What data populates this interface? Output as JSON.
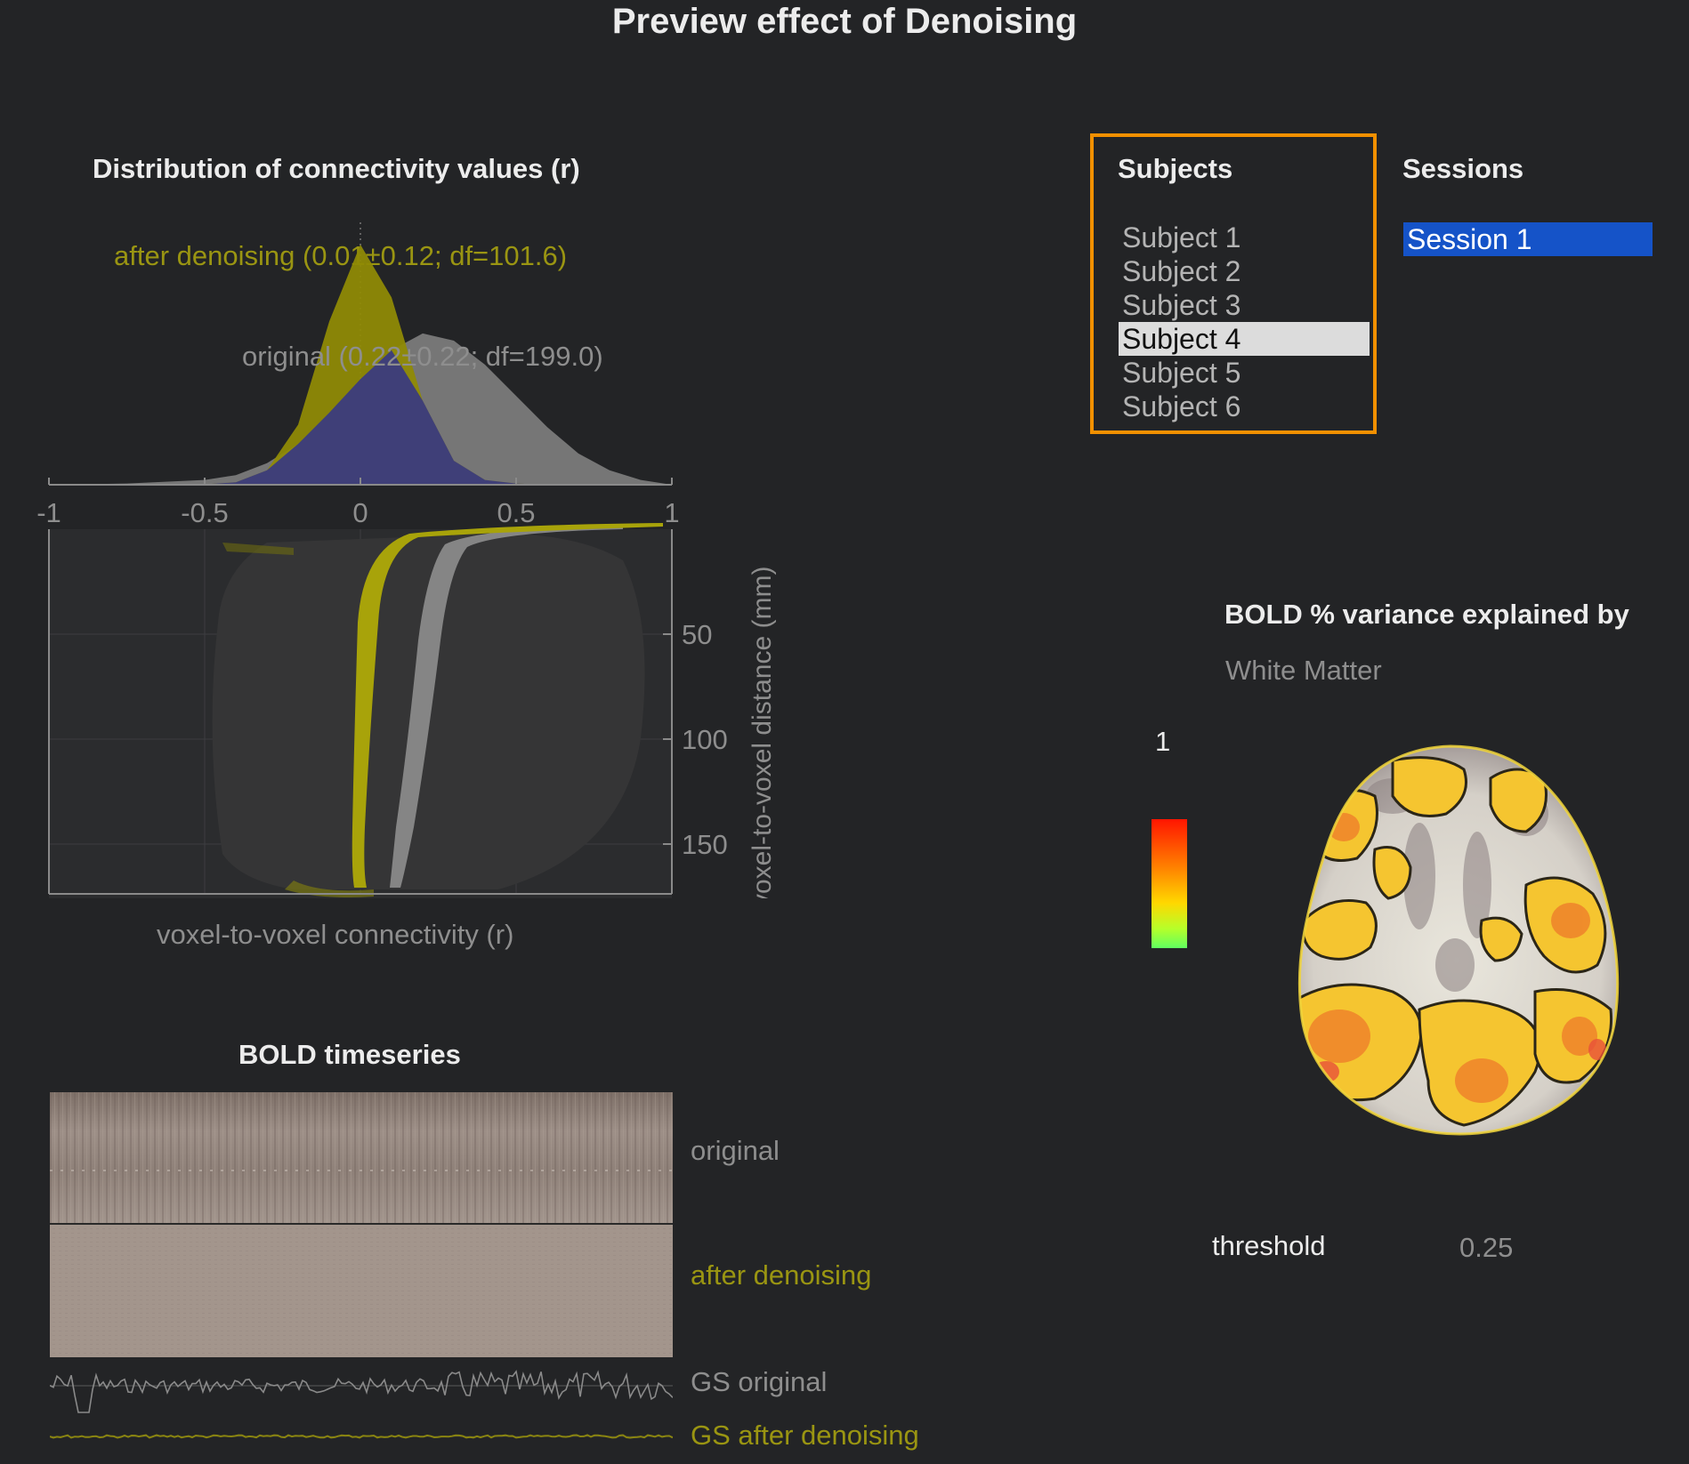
{
  "title": "Preview effect of Denoising",
  "distribution": {
    "title": "Distribution of connectivity values (r)",
    "after_label": "after denoising (0.01±0.12; df=101.6)",
    "original_label": "original (0.22±0.22; df=199.0)",
    "x_ticks": [
      "-1",
      "-0.5",
      "0",
      "0.5",
      "1"
    ],
    "y_ticks": [
      "50",
      "100",
      "150"
    ],
    "xlabel": "voxel-to-voxel connectivity (r)",
    "ylabel": "voxel-to-voxel distance (mm)"
  },
  "bold": {
    "title": "BOLD timeseries",
    "original_label": "original",
    "after_label": "after denoising",
    "gs_original_label": "GS original",
    "gs_after_label": "GS after denoising"
  },
  "subjects": {
    "title": "Subjects",
    "items": [
      "Subject 1",
      "Subject 2",
      "Subject 3",
      "Subject 4",
      "Subject 5",
      "Subject 6"
    ],
    "selected": "Subject 4"
  },
  "sessions": {
    "title": "Sessions",
    "items": [
      "Session 1"
    ],
    "selected": "Session 1"
  },
  "variance": {
    "title": "BOLD % variance explained by",
    "covariate": "White Matter",
    "colorbar_max": "1",
    "threshold_label": "threshold",
    "threshold_value": "0.25"
  },
  "colors": {
    "background": "#232426",
    "after_denoising": "#9a9512",
    "original": "#8e8e8e",
    "overlap": "#3a3a7a",
    "selection_border": "#f29000",
    "session_selected": "#1553c8"
  },
  "chart_data": {
    "type": "area",
    "x": [
      -1,
      -0.75,
      -0.5,
      -0.4,
      -0.3,
      -0.2,
      -0.1,
      0,
      0.1,
      0.2,
      0.3,
      0.4,
      0.5,
      0.6,
      0.7,
      0.8,
      0.9,
      1
    ],
    "xlim": [
      -1,
      1
    ],
    "series": [
      {
        "name": "after denoising (0.01±0.12; df=101.6)",
        "values": [
          0,
          0,
          0.002,
          0.01,
          0.06,
          0.25,
          0.68,
          1.0,
          0.78,
          0.35,
          0.1,
          0.02,
          0.005,
          0,
          0,
          0,
          0,
          0
        ]
      },
      {
        "name": "original (0.22±0.22; df=199.0)",
        "values": [
          0,
          0.005,
          0.02,
          0.04,
          0.09,
          0.17,
          0.3,
          0.44,
          0.56,
          0.63,
          0.6,
          0.5,
          0.37,
          0.24,
          0.13,
          0.06,
          0.02,
          0
        ]
      }
    ]
  }
}
